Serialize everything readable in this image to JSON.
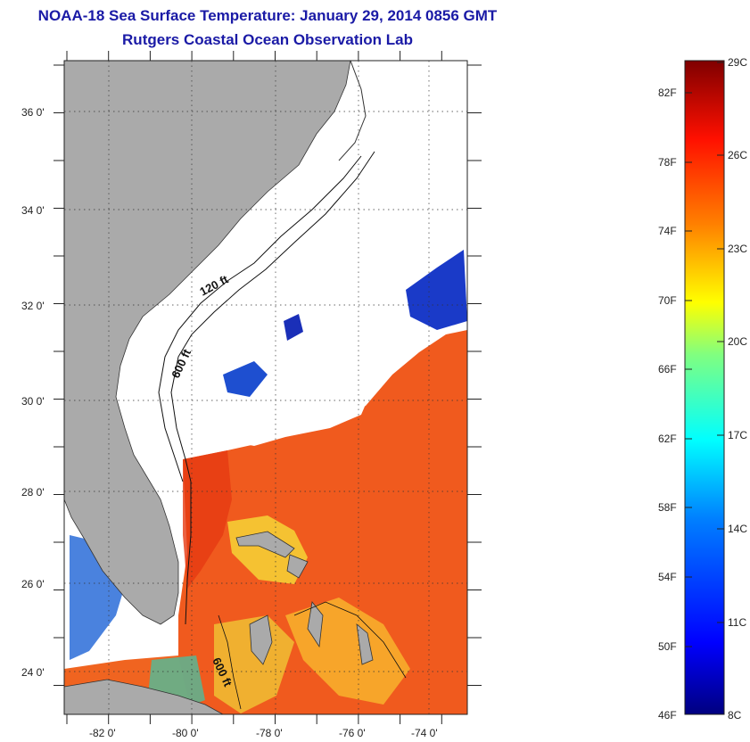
{
  "title": "NOAA-18 Sea Surface Temperature:  January 29, 2014 0856 GMT",
  "subtitle": "Rutgers Coastal Ocean Observation Lab",
  "lat_ticks": [
    "36 0'",
    "34 0'",
    "32 0'",
    "30 0'",
    "28 0'",
    "26 0'",
    "24 0'"
  ],
  "lon_ticks": [
    "-82 0'",
    "-80 0'",
    "-78 0'",
    "-76 0'",
    "-74 0'"
  ],
  "contour_labels": [
    "120 ft",
    "600 ft",
    "600 ft"
  ],
  "colorbar": {
    "fahrenheit_labels": [
      "82F",
      "78F",
      "74F",
      "70F",
      "66F",
      "62F",
      "58F",
      "54F",
      "50F",
      "46F"
    ],
    "celsius_labels": [
      "29C",
      "26C",
      "23C",
      "20C",
      "17C",
      "14C",
      "11C",
      "8C"
    ],
    "range_c": [
      8,
      29
    ],
    "range_f": [
      46,
      84
    ],
    "colors": [
      "#00007f",
      "#0000ff",
      "#0080ff",
      "#00ffff",
      "#80ff80",
      "#ffff00",
      "#ff8000",
      "#ff0000",
      "#7f0000"
    ]
  },
  "colors": {
    "title": "#1a1aa6",
    "land": "#aaaaaa",
    "cloud": "#ffffff",
    "warm_water": "#f05a1e"
  }
}
